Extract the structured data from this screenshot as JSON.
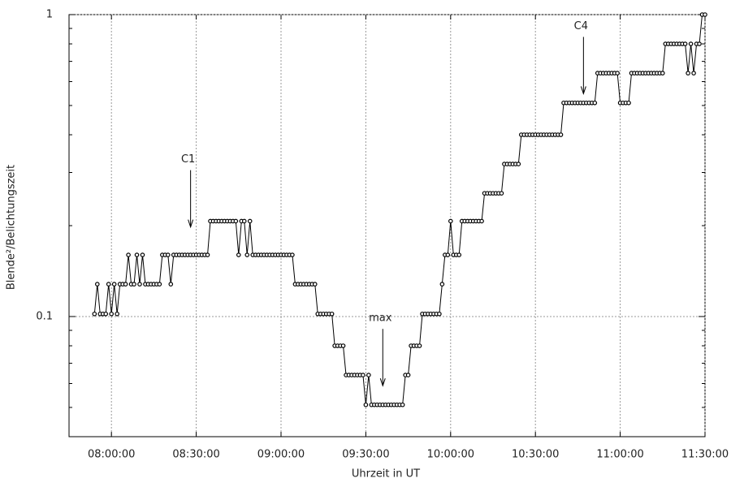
{
  "chart_data": {
    "type": "line",
    "x_label": "Uhrzeit in UT",
    "y_label": "Blende²/Belichtungszeit",
    "log_y": true,
    "grid": true,
    "color": "#000000",
    "xlim": [
      465,
      690
    ],
    "xticks": [
      {
        "value": 480,
        "label": "08:00:00"
      },
      {
        "value": 510,
        "label": "08:30:00"
      },
      {
        "value": 540,
        "label": "09:00:00"
      },
      {
        "value": 570,
        "label": "09:30:00"
      },
      {
        "value": 600,
        "label": "10:00:00"
      },
      {
        "value": 630,
        "label": "10:30:00"
      },
      {
        "value": 660,
        "label": "11:00:00"
      },
      {
        "value": 690,
        "label": "11:30:00"
      }
    ],
    "ylim": [
      0.04,
      1
    ],
    "yticks": [
      0.1,
      1
    ],
    "minor_yticks": [
      0.05,
      0.06,
      0.07,
      0.08,
      0.09,
      0.2,
      0.3,
      0.4,
      0.5,
      0.6,
      0.7,
      0.8,
      0.9
    ],
    "annotations": [
      {
        "text": "C1",
        "x": 508,
        "y": 0.198
      },
      {
        "text": "max",
        "x": 576,
        "y": 0.059
      },
      {
        "text": "C4",
        "x": 647,
        "y": 0.547
      }
    ],
    "x": [
      474,
      475,
      476,
      477,
      478,
      479,
      480,
      481,
      482,
      483,
      484,
      485,
      486,
      487,
      488,
      489,
      490,
      491,
      492,
      493,
      494,
      495,
      496,
      497,
      498,
      499,
      500,
      501,
      502,
      503,
      504,
      505,
      506,
      507,
      508,
      509,
      510,
      511,
      512,
      513,
      514,
      515,
      516,
      517,
      518,
      519,
      520,
      521,
      522,
      523,
      524,
      525,
      526,
      527,
      528,
      529,
      530,
      531,
      532,
      533,
      534,
      535,
      536,
      537,
      538,
      539,
      540,
      541,
      542,
      543,
      544,
      545,
      546,
      547,
      548,
      549,
      550,
      551,
      552,
      553,
      554,
      555,
      556,
      557,
      558,
      559,
      560,
      561,
      562,
      563,
      564,
      565,
      566,
      567,
      568,
      569,
      570,
      571,
      572,
      573,
      574,
      575,
      576,
      577,
      578,
      579,
      580,
      581,
      582,
      583,
      584,
      585,
      586,
      587,
      588,
      589,
      590,
      591,
      592,
      593,
      594,
      595,
      596,
      597,
      598,
      599,
      600,
      601,
      602,
      603,
      604,
      605,
      606,
      607,
      608,
      609,
      610,
      611,
      612,
      613,
      614,
      615,
      616,
      617,
      618,
      619,
      620,
      621,
      622,
      623,
      624,
      625,
      626,
      627,
      628,
      629,
      630,
      631,
      632,
      633,
      634,
      635,
      636,
      637,
      638,
      639,
      640,
      641,
      642,
      643,
      644,
      645,
      646,
      647,
      648,
      649,
      650,
      651,
      652,
      653,
      654,
      655,
      656,
      657,
      658,
      659,
      660,
      661,
      662,
      663,
      664,
      665,
      666,
      667,
      668,
      669,
      670,
      671,
      672,
      673,
      674,
      675,
      676,
      677,
      678,
      679,
      680,
      681,
      682,
      683,
      684,
      685,
      686,
      687,
      688,
      689,
      690
    ],
    "values": [
      0.102,
      0.128,
      0.102,
      0.102,
      0.102,
      0.128,
      0.102,
      0.128,
      0.102,
      0.128,
      0.128,
      0.128,
      0.16,
      0.128,
      0.128,
      0.16,
      0.128,
      0.16,
      0.128,
      0.128,
      0.128,
      0.128,
      0.128,
      0.128,
      0.16,
      0.16,
      0.16,
      0.128,
      0.16,
      0.16,
      0.16,
      0.16,
      0.16,
      0.16,
      0.16,
      0.16,
      0.16,
      0.16,
      0.16,
      0.16,
      0.16,
      0.207,
      0.207,
      0.207,
      0.207,
      0.207,
      0.207,
      0.207,
      0.207,
      0.207,
      0.207,
      0.16,
      0.207,
      0.207,
      0.16,
      0.207,
      0.16,
      0.16,
      0.16,
      0.16,
      0.16,
      0.16,
      0.16,
      0.16,
      0.16,
      0.16,
      0.16,
      0.16,
      0.16,
      0.16,
      0.16,
      0.128,
      0.128,
      0.128,
      0.128,
      0.128,
      0.128,
      0.128,
      0.128,
      0.102,
      0.102,
      0.102,
      0.102,
      0.102,
      0.102,
      0.08,
      0.08,
      0.08,
      0.08,
      0.064,
      0.064,
      0.064,
      0.064,
      0.064,
      0.064,
      0.064,
      0.051,
      0.064,
      0.051,
      0.051,
      0.051,
      0.051,
      0.051,
      0.051,
      0.051,
      0.051,
      0.051,
      0.051,
      0.051,
      0.051,
      0.064,
      0.064,
      0.08,
      0.08,
      0.08,
      0.08,
      0.102,
      0.102,
      0.102,
      0.102,
      0.102,
      0.102,
      0.102,
      0.128,
      0.16,
      0.16,
      0.207,
      0.16,
      0.16,
      0.16,
      0.207,
      0.207,
      0.207,
      0.207,
      0.207,
      0.207,
      0.207,
      0.207,
      0.256,
      0.256,
      0.256,
      0.256,
      0.256,
      0.256,
      0.256,
      0.32,
      0.32,
      0.32,
      0.32,
      0.32,
      0.32,
      0.4,
      0.4,
      0.4,
      0.4,
      0.4,
      0.4,
      0.4,
      0.4,
      0.4,
      0.4,
      0.4,
      0.4,
      0.4,
      0.4,
      0.4,
      0.51,
      0.51,
      0.51,
      0.51,
      0.51,
      0.51,
      0.51,
      0.51,
      0.51,
      0.51,
      0.51,
      0.51,
      0.64,
      0.64,
      0.64,
      0.64,
      0.64,
      0.64,
      0.64,
      0.64,
      0.51,
      0.51,
      0.51,
      0.51,
      0.64,
      0.64,
      0.64,
      0.64,
      0.64,
      0.64,
      0.64,
      0.64,
      0.64,
      0.64,
      0.64,
      0.64,
      0.8,
      0.8,
      0.8,
      0.8,
      0.8,
      0.8,
      0.8,
      0.8,
      0.64,
      0.8,
      0.64,
      0.8,
      0.8,
      1.0,
      1.0
    ]
  }
}
